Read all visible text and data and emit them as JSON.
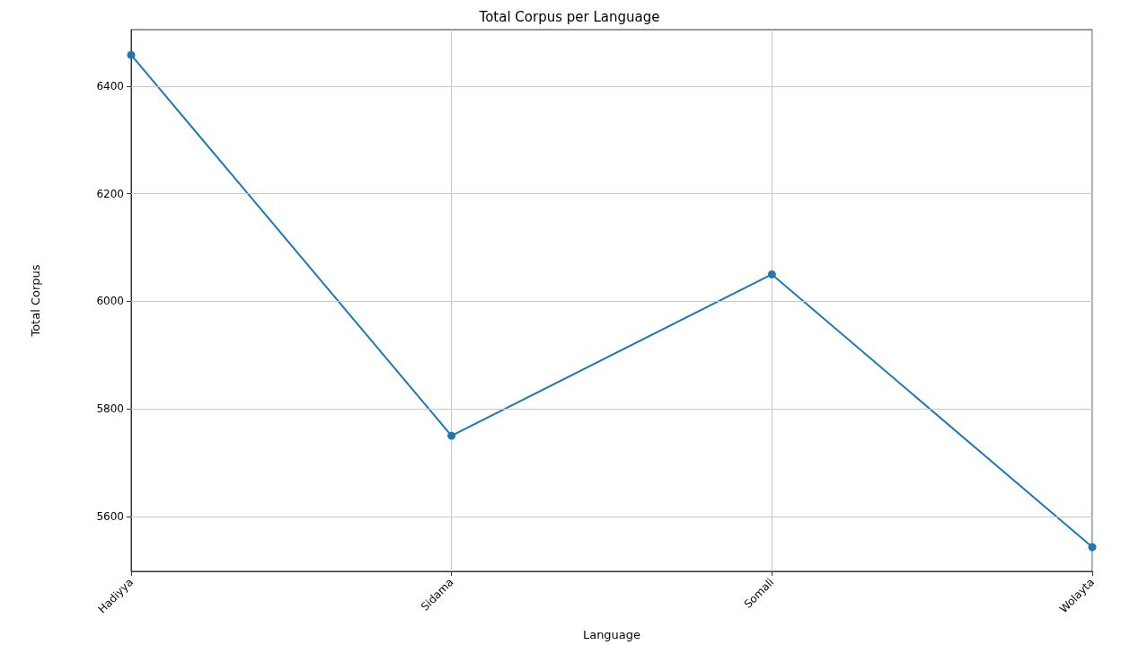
{
  "chart_data": {
    "type": "line",
    "title": "Total Corpus per Language",
    "xlabel": "Language",
    "ylabel": "Total Corpus",
    "categories": [
      "Hadiyya",
      "Sidama",
      "Somali",
      "Wolayta"
    ],
    "series": [
      {
        "color": "#1f77b4",
        "values": [
          6458,
          5750,
          6050,
          5543
        ]
      }
    ],
    "ylim": [
      5498,
      6505
    ],
    "yticks": [
      5600,
      5800,
      6000,
      6200,
      6400
    ],
    "grid": true,
    "marker": "circle",
    "line_style": "solid"
  }
}
